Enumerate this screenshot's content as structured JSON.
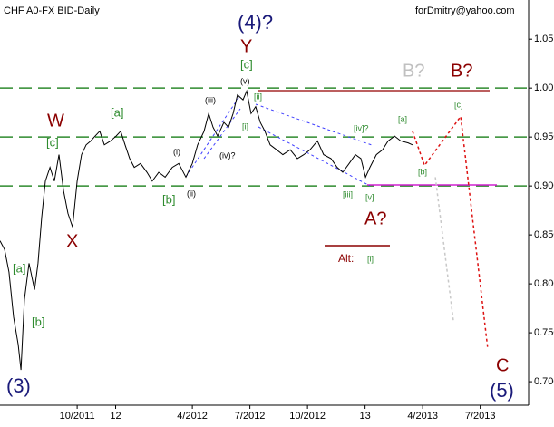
{
  "chart_data": {
    "type": "line",
    "title": "CHF A0-FX BID-Daily",
    "subtitle": "forDmitry@yahoo.com",
    "x": [
      2011.415,
      2011.435,
      2011.454,
      2011.474,
      2011.494,
      2011.506,
      2011.521,
      2011.541,
      2011.565,
      2011.58,
      2011.596,
      2011.612,
      2011.632,
      2011.651,
      2011.671,
      2011.691,
      2011.71,
      2011.73,
      2011.75,
      2011.769,
      2011.789,
      2011.809,
      2011.828,
      2011.848,
      2011.868,
      2011.895,
      2011.919,
      2011.939,
      2011.958,
      2011.978,
      2011.998,
      2012.025,
      2012.053,
      2012.076,
      2012.104,
      2012.132,
      2012.163,
      2012.191,
      2012.222,
      2012.25,
      2012.273,
      2012.301,
      2012.321,
      2012.34,
      2012.36,
      2012.387,
      2012.407,
      2012.427,
      2012.446,
      2012.47,
      2012.486,
      2012.505,
      2012.525,
      2012.545,
      2012.565,
      2012.588,
      2012.616,
      2012.643,
      2012.675,
      2012.706,
      2012.734,
      2012.761,
      2012.793,
      2012.82,
      2012.852,
      2012.879,
      2012.903,
      2012.931,
      2012.958,
      2012.982,
      2013.002,
      2013.021,
      2013.049,
      2013.076,
      2013.1,
      2013.128,
      2013.155,
      2013.187,
      2013.206
    ],
    "series": [
      {
        "color": "#000000",
        "values": [
          0.844,
          0.835,
          0.812,
          0.766,
          0.738,
          0.712,
          0.784,
          0.821,
          0.794,
          0.821,
          0.868,
          0.905,
          0.919,
          0.905,
          0.932,
          0.895,
          0.872,
          0.858,
          0.905,
          0.932,
          0.942,
          0.946,
          0.951,
          0.956,
          0.942,
          0.946,
          0.951,
          0.956,
          0.942,
          0.928,
          0.919,
          0.923,
          0.914,
          0.905,
          0.914,
          0.909,
          0.919,
          0.923,
          0.909,
          0.923,
          0.942,
          0.956,
          0.974,
          0.96,
          0.951,
          0.965,
          0.96,
          0.974,
          0.993,
          0.988,
          0.997,
          0.974,
          0.981,
          0.965,
          0.956,
          0.942,
          0.937,
          0.932,
          0.937,
          0.928,
          0.932,
          0.937,
          0.946,
          0.932,
          0.928,
          0.919,
          0.914,
          0.923,
          0.932,
          0.928,
          0.909,
          0.919,
          0.932,
          0.937,
          0.946,
          0.951,
          0.946,
          0.944,
          0.942
        ]
      }
    ],
    "forecasts": [
      {
        "color": "#dd1111",
        "x": [
          2013.206,
          2013.258,
          2013.415,
          2013.533
        ],
        "values": [
          0.956,
          0.921,
          0.971,
          0.733
        ]
      },
      {
        "color": "#c8c8c8",
        "x": [
          2013.305,
          2013.384
        ],
        "values": [
          0.909,
          0.761
        ]
      }
    ],
    "levels": [
      1.0,
      0.95,
      0.9
    ],
    "level_color": "#2e8b2e",
    "xlim": [
      2011.415,
      2013.71
    ],
    "xticks": [
      {
        "value": 2011.75,
        "label": "10/2011"
      },
      {
        "value": 2011.917,
        "label": "12"
      },
      {
        "value": 2012.25,
        "label": "4/2012"
      },
      {
        "value": 2012.5,
        "label": "7/2012"
      },
      {
        "value": 2012.75,
        "label": "10/2012"
      },
      {
        "value": 2013.0,
        "label": "13"
      },
      {
        "value": 2013.25,
        "label": "4/2013"
      },
      {
        "value": 2013.5,
        "label": "7/2013"
      }
    ],
    "ylim": [
      0.676,
      1.09
    ],
    "yticks": [
      1.05,
      {
        "value": 1.0,
        "label": "1.00"
      },
      {
        "value": 0.95,
        "label": "0.950"
      },
      {
        "value": 0.9,
        "label": "0.900"
      },
      {
        "value": 0.85,
        "label": "0.850"
      },
      {
        "value": 0.8,
        "label": "0.800"
      },
      {
        "value": 0.75,
        "label": "0.750"
      },
      {
        "value": 0.7,
        "label": "0.700"
      }
    ],
    "annotations": [
      "(4)?",
      "Y",
      "[c]",
      "(v)",
      "B?",
      "B?",
      "[c]",
      "W",
      "[a]",
      "[c]",
      "(iii)",
      "[ii]",
      "[i]",
      "[iv]?",
      "[a]",
      "(i)",
      "(iv)?",
      "[b]",
      "[b]",
      "(ii)",
      "[iii]",
      "[v]",
      "A?",
      "X",
      "Alt:",
      "[i]",
      "[a]",
      "[b]",
      "(3)",
      "C",
      "(5)"
    ]
  }
}
